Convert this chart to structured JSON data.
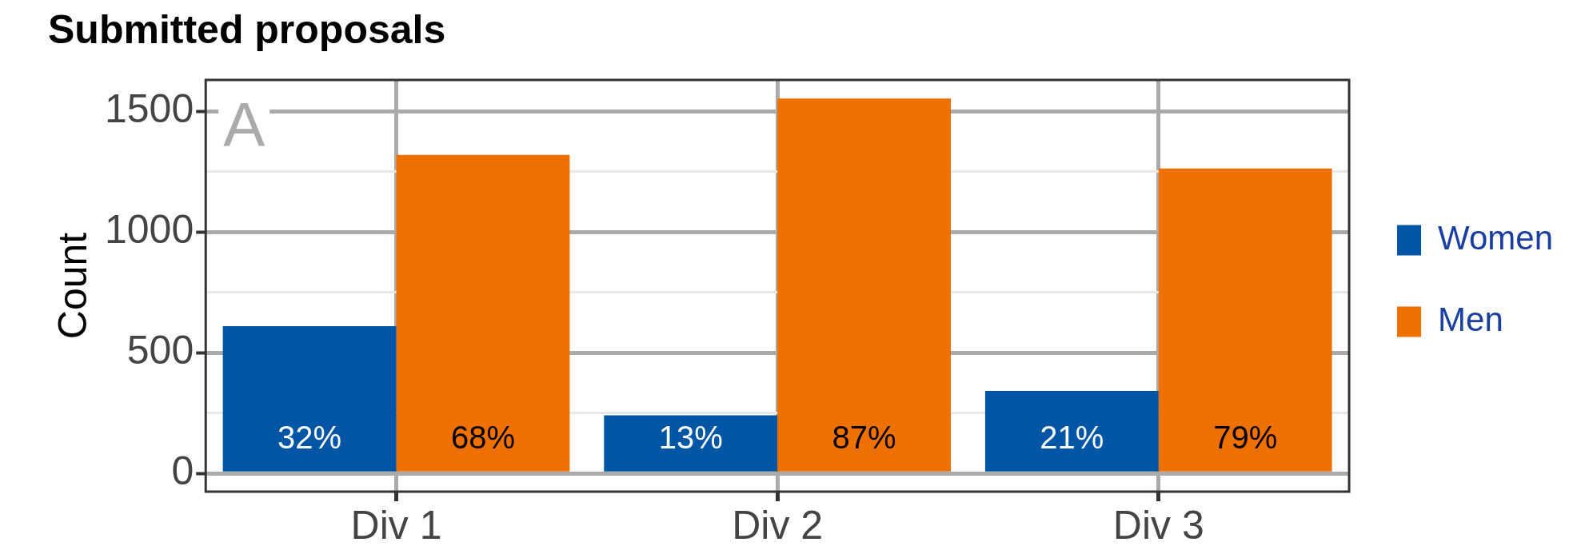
{
  "chart_data": {
    "type": "bar",
    "title": "Submitted proposals",
    "ylabel": "Count",
    "annotations": [
      "A",
      "32%",
      "68%",
      "13%",
      "87%",
      "21%",
      "79%"
    ],
    "categories": [
      "Div 1",
      "Div 2",
      "Div 3"
    ],
    "series": [
      {
        "name": "Women",
        "color": "#0055a4",
        "values": [
          610,
          241,
          342
        ]
      },
      {
        "name": "Men",
        "color": "#ee7100",
        "values": [
          1320,
          1553,
          1263
        ]
      }
    ],
    "ylim": [
      -75,
      1630
    ],
    "yticks": [
      0,
      {
        "value": 250,
        "label": null
      },
      500,
      {
        "value": 750,
        "label": null
      },
      1000,
      {
        "value": 1250,
        "label": null
      },
      1500
    ],
    "grid": true,
    "legend": "right"
  }
}
